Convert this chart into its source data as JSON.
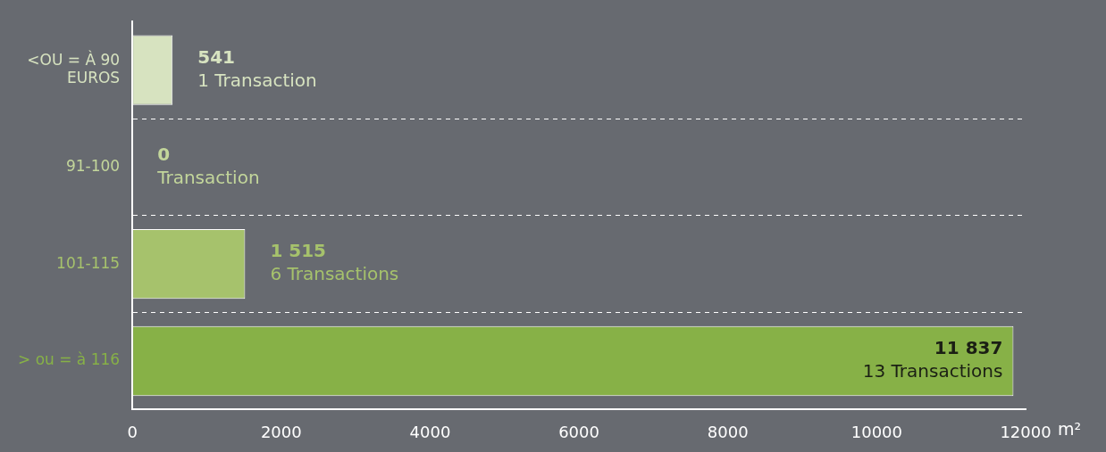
{
  "chart_data": {
    "type": "bar",
    "orientation": "horizontal",
    "categories": [
      "<OU = À 90 EUROS",
      "91-100",
      "101-115",
      "> ou = à 116"
    ],
    "values": [
      541,
      0,
      1515,
      11837
    ],
    "colors": [
      "#d7e3c0",
      "#c3d69b",
      "#a6c26c",
      "#87b147"
    ],
    "value_labels": [
      "541",
      "0",
      "1 515",
      "11 837"
    ],
    "annotations": [
      {
        "text": "1 Transaction",
        "x": 541,
        "y": "<OU = À 90 EUROS"
      },
      {
        "text": "Transaction",
        "x": 0,
        "y": "91-100"
      },
      {
        "text": "6 Transactions",
        "x": 1515,
        "y": "101-115"
      },
      {
        "text": "13 Transactions",
        "x": 11837,
        "y": "> ou = à 116"
      }
    ],
    "xlabel": "m²",
    "xlim": [
      0,
      12000
    ],
    "xticks": [
      0,
      2000,
      4000,
      6000,
      8000,
      10000,
      12000
    ],
    "grid": "y",
    "line_style": "dashed",
    "legend": false
  }
}
